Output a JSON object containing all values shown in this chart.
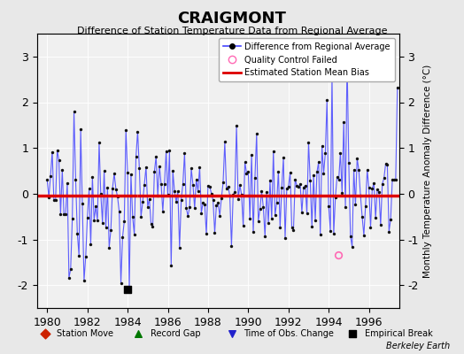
{
  "title": "CRAIGMONT",
  "subtitle": "Difference of Station Temperature Data from Regional Average",
  "ylabel": "Monthly Temperature Anomaly Difference (°C)",
  "xlabel_years": [
    1980,
    1982,
    1984,
    1986,
    1988,
    1990,
    1992,
    1994,
    1996
  ],
  "xlim": [
    1979.5,
    1997.5
  ],
  "ylim": [
    -2.5,
    3.5
  ],
  "yticks": [
    -2,
    -1,
    0,
    1,
    2,
    3
  ],
  "bias_level": -0.05,
  "bias_start": 1979.5,
  "bias_end": 1984.5,
  "bias_level2": -0.05,
  "bias_start2": 1984.5,
  "bias_end2": 1997.5,
  "empirical_break_x": 1984.0,
  "empirical_break_y": -2.1,
  "background_color": "#e8e8e8",
  "plot_bg_color": "#f0f0f0",
  "line_color": "#4444ff",
  "marker_color": "#111111",
  "bias_color": "#dd0000",
  "footer": "Berkeley Earth",
  "seed": 42
}
